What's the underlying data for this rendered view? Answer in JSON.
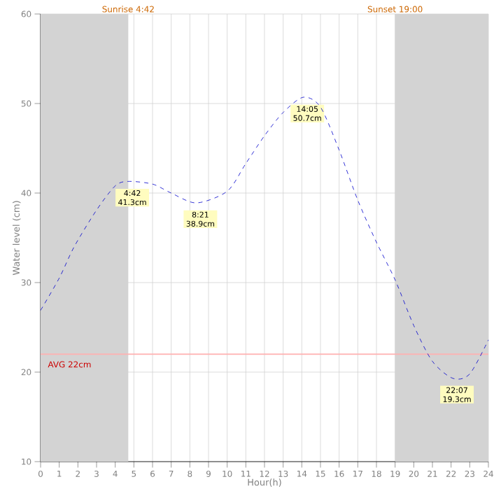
{
  "chart_data": {
    "type": "line",
    "xlabel": "Hour(h)",
    "ylabel": "Water level (cm)",
    "x": [
      0,
      1,
      1.8,
      3,
      4,
      4.7,
      6,
      7,
      8.35,
      10,
      11,
      12,
      13,
      14.08,
      15,
      16,
      17,
      18,
      19,
      20,
      21,
      22.1,
      23,
      24
    ],
    "series": [
      {
        "color": "#0000cc",
        "values": [
          26.9,
          30.5,
          34,
          38.1,
          40.8,
          41.3,
          41,
          40,
          38.9,
          40.2,
          43.3,
          46.4,
          49,
          50.7,
          49.6,
          44.8,
          39.2,
          34.5,
          30.3,
          25.2,
          21.2,
          19.3,
          19.8,
          23.6
        ]
      }
    ],
    "xlim": [
      0,
      24
    ],
    "xticks": [
      0,
      1,
      2,
      3,
      4,
      5,
      6,
      7,
      8,
      9,
      10,
      11,
      12,
      13,
      14,
      15,
      16,
      17,
      18,
      19,
      20,
      21,
      22,
      23,
      24
    ],
    "ylim": [
      10,
      60
    ],
    "yticks": [
      10,
      20,
      30,
      40,
      50,
      60
    ],
    "grid": true,
    "line_style": "dashed",
    "bands": [
      {
        "axis": "x",
        "from": 0,
        "to": 4.7,
        "label": "Sunrise 4:42",
        "color": "#d3d3d3"
      },
      {
        "axis": "x",
        "from": 19,
        "to": 24,
        "label": "Sunset 19:00",
        "color": "#d3d3d3"
      }
    ],
    "ref_lines": [
      {
        "axis": "y",
        "value": 22,
        "label": "AVG 22cm",
        "color": "#ffb0b0"
      }
    ],
    "annotations": [
      {
        "text": "4:42 41.3cm",
        "x": 4.7,
        "y": 41.3
      },
      {
        "text": "8:21 38.9cm",
        "x": 8.35,
        "y": 38.9
      },
      {
        "text": "14:05 50.7cm",
        "x": 14.08,
        "y": 50.7
      },
      {
        "text": "22:07 19.3cm",
        "x": 22.1,
        "y": 19.3
      }
    ]
  }
}
